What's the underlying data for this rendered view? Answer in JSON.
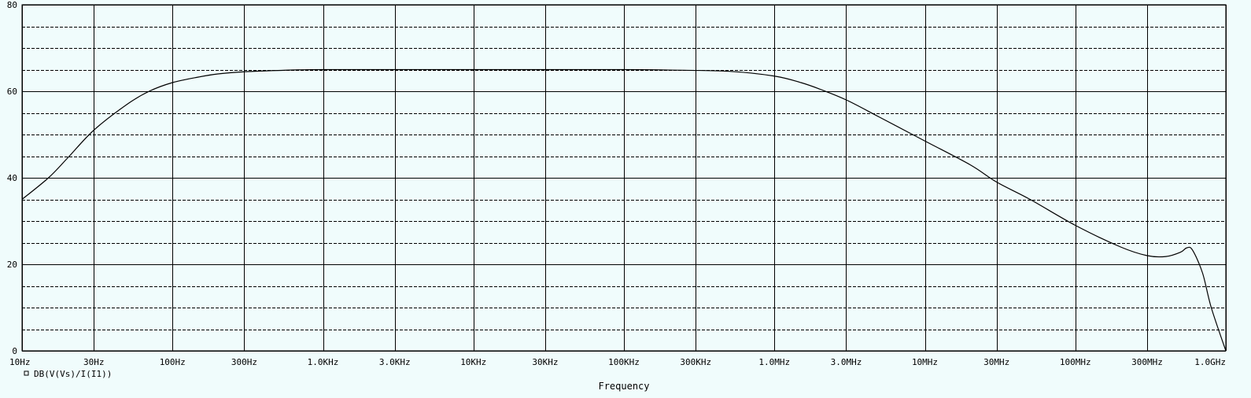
{
  "chart_data": {
    "type": "line",
    "title": "",
    "xlabel": "Frequency",
    "ylabel": "",
    "x_scale": "log",
    "xlim": [
      10,
      1000000000
    ],
    "ylim": [
      0,
      80
    ],
    "grid": true,
    "x_ticks": [
      {
        "value": 10,
        "label": "10Hz"
      },
      {
        "value": 30,
        "label": "30Hz"
      },
      {
        "value": 100,
        "label": "100Hz"
      },
      {
        "value": 300,
        "label": "300Hz"
      },
      {
        "value": 1000,
        "label": "1.0KHz"
      },
      {
        "value": 3000,
        "label": "3.0KHz"
      },
      {
        "value": 10000,
        "label": "10KHz"
      },
      {
        "value": 30000,
        "label": "30KHz"
      },
      {
        "value": 100000,
        "label": "100KHz"
      },
      {
        "value": 300000,
        "label": "300KHz"
      },
      {
        "value": 1000000,
        "label": "1.0MHz"
      },
      {
        "value": 3000000,
        "label": "3.0MHz"
      },
      {
        "value": 10000000,
        "label": "10MHz"
      },
      {
        "value": 30000000,
        "label": "30MHz"
      },
      {
        "value": 100000000,
        "label": "100MHz"
      },
      {
        "value": 300000000,
        "label": "300MHz"
      },
      {
        "value": 1000000000,
        "label": "1.0GHz"
      }
    ],
    "y_ticks": [
      {
        "value": 0,
        "label": "0"
      },
      {
        "value": 20,
        "label": "20"
      },
      {
        "value": 40,
        "label": "40"
      },
      {
        "value": 60,
        "label": "60"
      },
      {
        "value": 80,
        "label": "80"
      }
    ],
    "y_minor_grid": [
      5,
      10,
      15,
      25,
      30,
      35,
      45,
      50,
      55,
      65,
      70,
      75
    ],
    "legend": {
      "position": "bottom-left",
      "marker": "square"
    },
    "series": [
      {
        "name": "DB(V(Vs)/I(I1))",
        "x": [
          10,
          15,
          20,
          30,
          50,
          70,
          100,
          150,
          200,
          300,
          500,
          1000,
          10000,
          100000,
          200000,
          500000,
          1000000,
          1500000,
          2000000,
          3000000,
          5000000,
          10000000,
          20000000,
          30000000,
          50000000,
          100000000,
          200000000,
          300000000,
          400000000,
          500000000,
          550000000,
          600000000,
          700000000,
          800000000,
          1000000000
        ],
        "values": [
          35,
          40,
          44.5,
          51,
          57,
          60,
          62,
          63.3,
          64,
          64.5,
          64.8,
          65,
          65,
          65,
          64.9,
          64.6,
          63.5,
          62,
          60.5,
          58,
          54,
          48.5,
          43,
          39,
          35,
          29,
          24,
          22,
          21.8,
          22.8,
          23.8,
          23.3,
          18,
          10,
          0
        ]
      }
    ]
  }
}
